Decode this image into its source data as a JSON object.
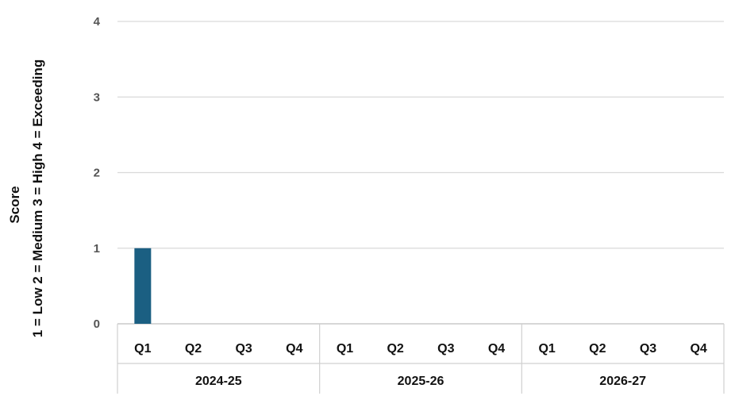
{
  "chart_data": {
    "type": "bar",
    "ylabel_lines": [
      "Score",
      "1 = Low   2 = Medium   3 = High   4 = Exceeding"
    ],
    "groups": [
      {
        "label": "2024-25",
        "categories": [
          "Q1",
          "Q2",
          "Q3",
          "Q4"
        ]
      },
      {
        "label": "2025-26",
        "categories": [
          "Q1",
          "Q2",
          "Q3",
          "Q4"
        ]
      },
      {
        "label": "2026-27",
        "categories": [
          "Q1",
          "Q2",
          "Q3",
          "Q4"
        ]
      }
    ],
    "values": [
      1,
      null,
      null,
      null,
      null,
      null,
      null,
      null,
      null,
      null,
      null,
      null
    ],
    "ylim": [
      0,
      4
    ],
    "yticks": [
      0,
      1,
      2,
      3,
      4
    ],
    "grid": true,
    "legend": "none",
    "bar_color": "#1b5f82"
  }
}
